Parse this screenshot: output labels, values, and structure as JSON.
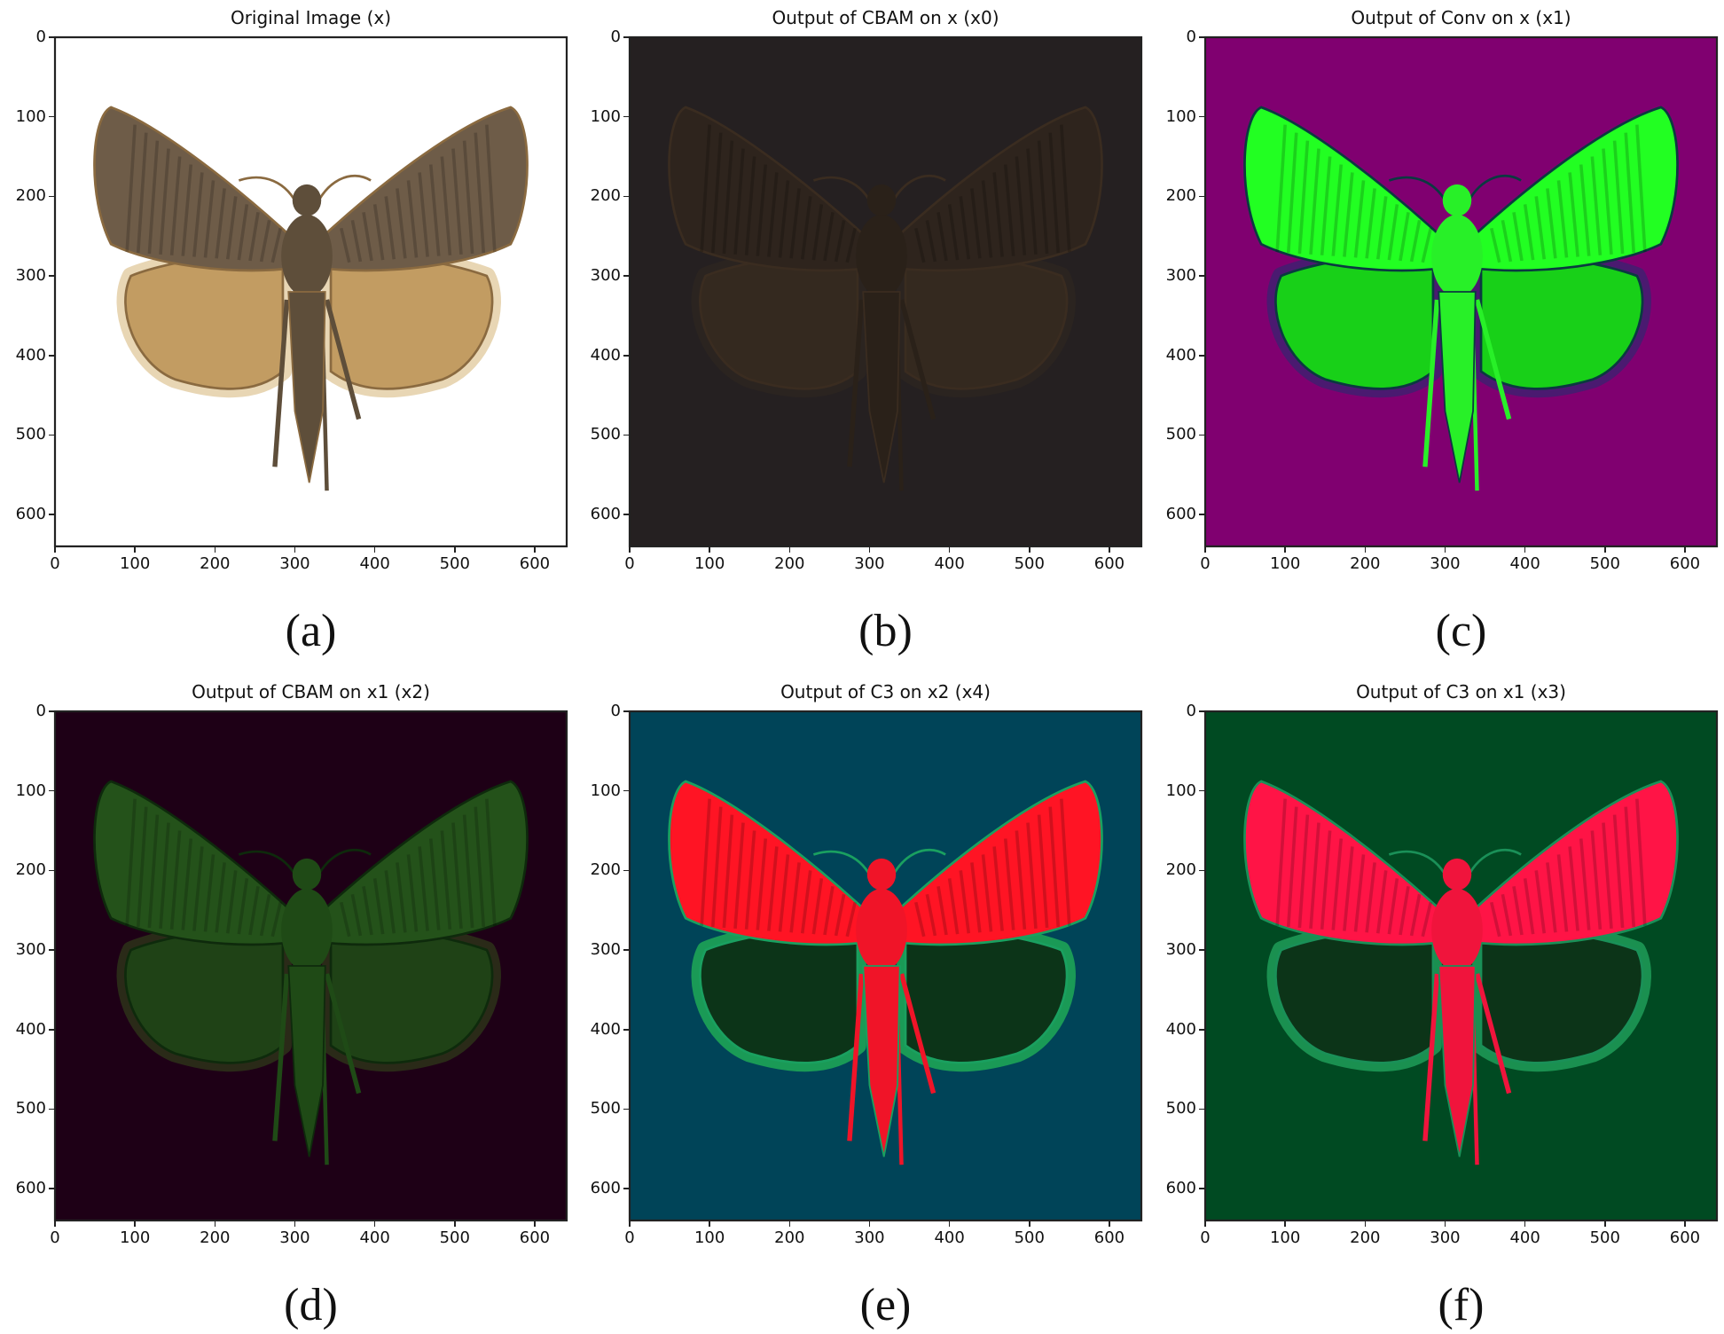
{
  "figure": {
    "axis_range": {
      "x": [
        0,
        640
      ],
      "y": [
        0,
        640
      ],
      "y_inverted": true
    },
    "x_ticks": [
      "0",
      "100",
      "200",
      "300",
      "400",
      "500",
      "600"
    ],
    "y_ticks": [
      "0",
      "100",
      "200",
      "300",
      "400",
      "500",
      "600"
    ],
    "panels": [
      {
        "title": "Original Image (x)",
        "caption": "(a)",
        "colors": {
          "bg": "#ffffff",
          "fore": "#6e5c48",
          "hind": "#c29c62",
          "fringe": "#e8d6b4",
          "body": "#5e4e3a",
          "edge": "#8a6a40"
        }
      },
      {
        "title": "Output of CBAM on x (x0)",
        "caption": "(b)",
        "colors": {
          "bg": "#252021",
          "fore": "#2e241d",
          "hind": "#34291f",
          "fringe": "#2b2420",
          "body": "#2a2119",
          "edge": "#3a2c20"
        }
      },
      {
        "title": "Output of Conv on x (x1)",
        "caption": "(c)",
        "colors": {
          "bg": "#800070",
          "fore": "#22ff22",
          "hind": "#18d018",
          "fringe": "#4a1a70",
          "body": "#28f028",
          "edge": "#0a3a40"
        }
      },
      {
        "title": "Output of CBAM on x1 (x2)",
        "caption": "(d)",
        "colors": {
          "bg": "#1e0016",
          "fore": "#24521a",
          "hind": "#1f4216",
          "fringe": "#2a2a18",
          "body": "#1f4a16",
          "edge": "#0e2a0c"
        }
      },
      {
        "title": "Output of C3 on x2 (x4)",
        "caption": "(e)",
        "colors": {
          "bg": "#004458",
          "fore": "#ff1424",
          "hind": "#0c3418",
          "fringe": "#1a9a56",
          "body": "#f01428",
          "edge": "#1aa060"
        }
      },
      {
        "title": "Output of C3 on x1 (x3)",
        "caption": "(f)",
        "colors": {
          "bg": "#004a22",
          "fore": "#ff1446",
          "hind": "#0c3418",
          "fringe": "#1a9050",
          "body": "#f0143c",
          "edge": "#1a9058"
        }
      }
    ]
  }
}
